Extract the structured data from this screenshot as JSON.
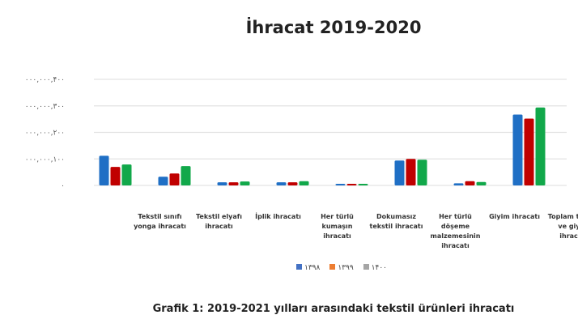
{
  "chart_data": {
    "type": "bar",
    "title": "İhracat 2019-2020",
    "caption": "Grafik 1: 2019-2021 yılları arasındaki tekstil ürünleri ihracatı",
    "categories": [
      "Tekstil sınıfı yonga ihracatı",
      "Tekstil elyafı ihracatı",
      "İplik ihracatı",
      "Her türlü kumaşın ihracatı",
      "Dokumasız tekstil ihracatı",
      "Her türlü döşeme malzemesinin ihracatı",
      "Giyim ihracatı",
      "Toplam tekstil ve giyim ihracatı"
    ],
    "series": [
      {
        "name": "۱۳۹۸",
        "bar_color": "#1f6fc5",
        "legend_color": "#4472c4",
        "values": [
          112,
          33,
          12,
          12,
          6,
          94,
          8,
          267
        ]
      },
      {
        "name": "۱۳۹۹",
        "bar_color": "#c00000",
        "legend_color": "#ed7d31",
        "values": [
          70,
          45,
          12,
          12,
          6,
          100,
          16,
          252
        ]
      },
      {
        "name": "۱۴۰۰",
        "bar_color": "#11a84a",
        "legend_color": "#a5a5a5",
        "values": [
          79,
          73,
          15,
          16,
          6,
          97,
          13,
          294
        ]
      }
    ],
    "yticks": [
      {
        "v": 0,
        "label": "۰"
      },
      {
        "v": 100,
        "label": "۰۰۰,۰۰۰,۱۰۰"
      },
      {
        "v": 200,
        "label": "۰۰۰,۰۰۰,۲۰۰"
      },
      {
        "v": 300,
        "label": "۰۰۰,۰۰۰,۳۰۰"
      },
      {
        "v": 400,
        "label": "۰۰۰,۰۰۰,۴۰۰"
      }
    ],
    "ylim": [
      0,
      400
    ],
    "ylabel_unit": "millions",
    "grid": true,
    "legend_position": "bottom"
  }
}
